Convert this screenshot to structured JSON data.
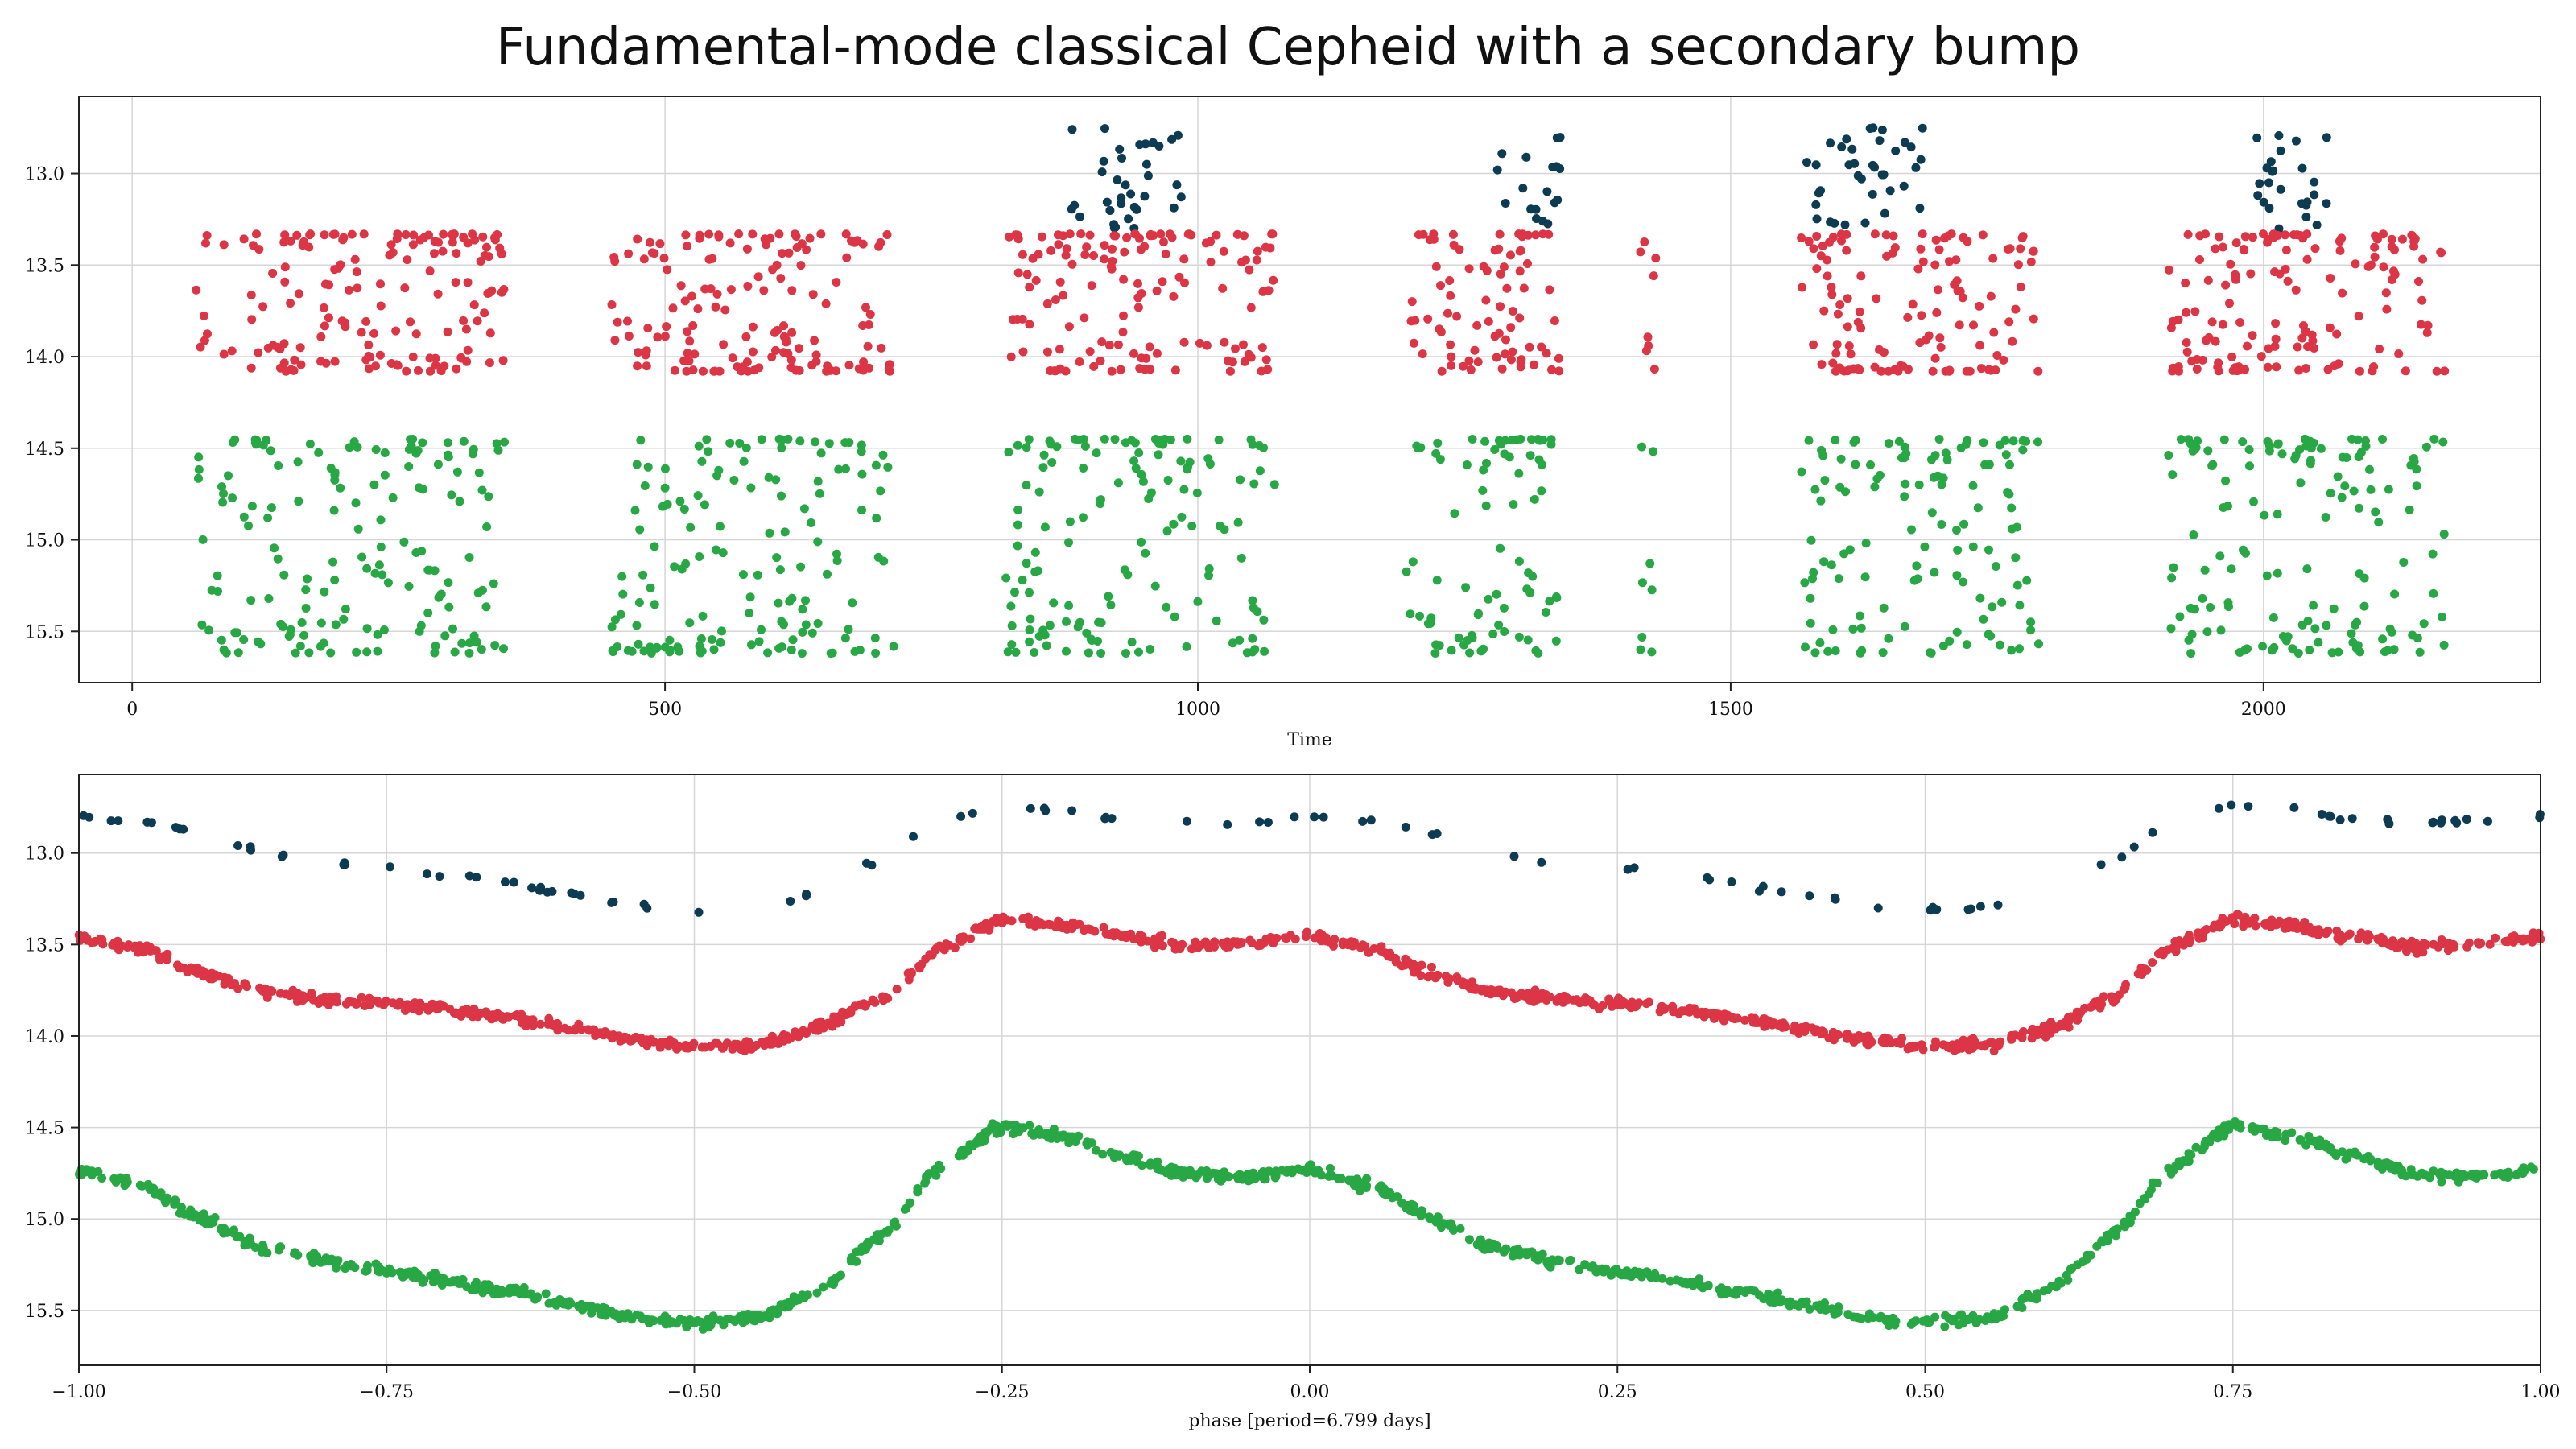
{
  "figure": {
    "title": "Fundamental-mode classical Cepheid with a secondary bump"
  },
  "colors": {
    "series_top": "#0d3b52",
    "series_mid": "#dc3545",
    "series_bottom": "#28a745",
    "grid": "#d6d6d6",
    "axis": "#222222"
  },
  "chart_data": [
    {
      "type": "scatter",
      "title": "",
      "xlabel": "Time",
      "ylabel": "",
      "xlim": [
        -50,
        2260
      ],
      "ylim": [
        15.78,
        12.58
      ],
      "y_inverted": true,
      "xticks": [
        0,
        500,
        1000,
        1500,
        2000
      ],
      "xtick_labels": [
        "0",
        "500",
        "1000",
        "1500",
        "2000"
      ],
      "yticks": [
        13.0,
        13.5,
        14.0,
        14.5,
        15.0,
        15.5
      ],
      "ytick_labels": [
        "13.0",
        "13.5",
        "14.0",
        "14.5",
        "15.0",
        "15.5"
      ],
      "grid": true,
      "seasons": [
        {
          "start": 60,
          "end": 350
        },
        {
          "start": 450,
          "end": 715
        },
        {
          "start": 820,
          "end": 1075
        },
        {
          "start": 1195,
          "end": 1340
        },
        {
          "start": 1415,
          "end": 1430
        },
        {
          "start": 1565,
          "end": 1790
        },
        {
          "start": 1910,
          "end": 2170
        }
      ],
      "series": [
        {
          "color_key": "series_top",
          "ymin": 12.75,
          "ymax": 13.32,
          "sample_windows": [
            [
              880,
              985
            ],
            [
              1280,
              1290
            ],
            [
              1300,
              1345
            ],
            [
              1570,
              1680
            ],
            [
              1985,
              2060
            ]
          ]
        },
        {
          "color_key": "series_mid",
          "ymin": 13.33,
          "ymax": 14.08
        },
        {
          "color_key": "series_bottom",
          "ymin": 14.45,
          "ymax": 15.62
        }
      ]
    },
    {
      "type": "scatter",
      "title": "",
      "xlabel": "phase [period=6.799 days]",
      "ylabel": "",
      "xlim": [
        -1.0,
        1.0
      ],
      "ylim": [
        15.8,
        12.57
      ],
      "y_inverted": true,
      "xticks": [
        -1.0,
        -0.75,
        -0.5,
        -0.25,
        0.0,
        0.25,
        0.5,
        0.75,
        1.0
      ],
      "xtick_labels": [
        "−1.00",
        "−0.75",
        "−0.50",
        "−0.25",
        "0.00",
        "0.25",
        "0.50",
        "0.75",
        "1.00"
      ],
      "yticks": [
        13.0,
        13.5,
        14.0,
        14.5,
        15.0,
        15.5
      ],
      "ytick_labels": [
        "13.0",
        "13.5",
        "14.0",
        "14.5",
        "15.0",
        "15.5"
      ],
      "grid": true,
      "period_days": 6.799,
      "series": [
        {
          "color_key": "series_top",
          "curve_phase": [
            0.0,
            0.05,
            0.1,
            0.15,
            0.2,
            0.25,
            0.3,
            0.35,
            0.4,
            0.45,
            0.5,
            0.55,
            0.6,
            0.65,
            0.7,
            0.75,
            0.8,
            0.85,
            0.9,
            0.95,
            1.0
          ],
          "curve_mag": [
            12.8,
            12.82,
            12.89,
            13.0,
            13.05,
            13.08,
            13.12,
            13.17,
            13.22,
            13.28,
            13.31,
            13.3,
            13.22,
            13.05,
            12.82,
            12.74,
            12.77,
            12.82,
            12.83,
            12.83,
            12.8
          ]
        },
        {
          "color_key": "series_mid",
          "curve_phase": [
            0.0,
            0.05,
            0.1,
            0.15,
            0.2,
            0.25,
            0.3,
            0.35,
            0.4,
            0.45,
            0.5,
            0.55,
            0.6,
            0.65,
            0.7,
            0.75,
            0.8,
            0.85,
            0.9,
            0.95,
            1.0
          ],
          "curve_mag": [
            13.46,
            13.52,
            13.66,
            13.76,
            13.8,
            13.82,
            13.86,
            13.9,
            13.96,
            14.02,
            14.06,
            14.05,
            13.96,
            13.8,
            13.52,
            13.36,
            13.4,
            13.46,
            13.51,
            13.49,
            13.46
          ]
        },
        {
          "color_key": "series_bottom",
          "curve_phase": [
            0.0,
            0.05,
            0.1,
            0.15,
            0.2,
            0.25,
            0.3,
            0.35,
            0.4,
            0.45,
            0.5,
            0.55,
            0.6,
            0.65,
            0.7,
            0.75,
            0.8,
            0.85,
            0.9,
            0.95,
            1.0
          ],
          "curve_mag": [
            14.73,
            14.82,
            15.0,
            15.16,
            15.23,
            15.29,
            15.34,
            15.4,
            15.47,
            15.54,
            15.57,
            15.54,
            15.4,
            15.1,
            14.72,
            14.49,
            14.55,
            14.66,
            14.76,
            14.77,
            14.73
          ]
        }
      ]
    }
  ]
}
